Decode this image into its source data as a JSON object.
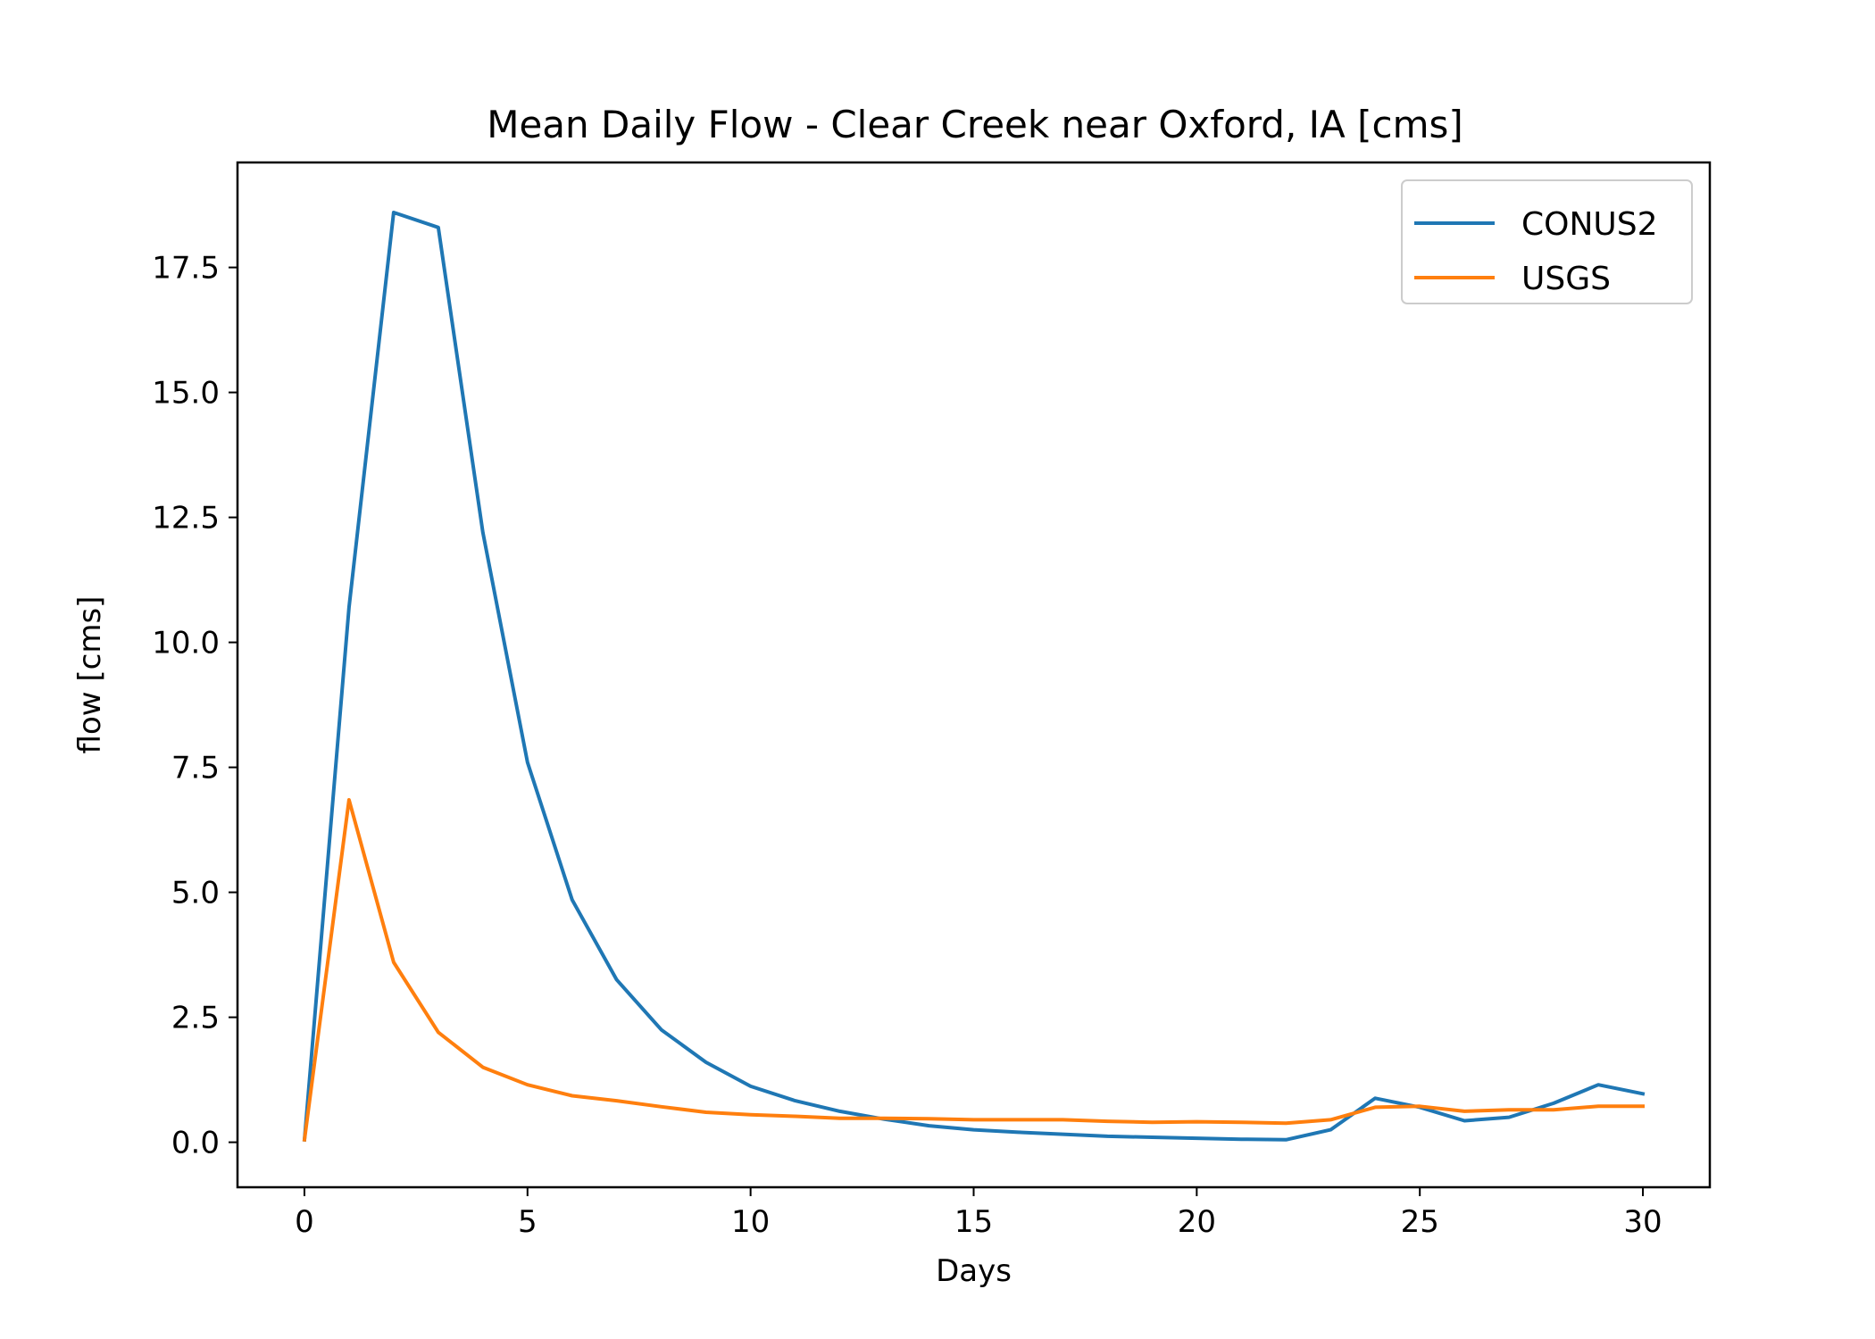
{
  "chart_data": {
    "type": "line",
    "title": "Mean Daily Flow - Clear Creek near Oxford, IA [cms]",
    "xlabel": "Days",
    "ylabel": "flow [cms]",
    "xlim": [
      -1.5,
      31.5
    ],
    "ylim": [
      -0.9,
      19.6
    ],
    "xticks": [
      0,
      5,
      10,
      15,
      20,
      25,
      30
    ],
    "xtick_labels": [
      "0",
      "5",
      "10",
      "15",
      "20",
      "25",
      "30"
    ],
    "yticks": [
      0,
      2.5,
      5,
      7.5,
      10,
      12.5,
      15,
      17.5
    ],
    "ytick_labels": [
      "0.0",
      "2.5",
      "5.0",
      "7.5",
      "10.0",
      "12.5",
      "15.0",
      "17.5"
    ],
    "grid": false,
    "legend_position": "top-right",
    "x": [
      0,
      1,
      2,
      3,
      4,
      5,
      6,
      7,
      8,
      9,
      10,
      11,
      12,
      13,
      14,
      15,
      16,
      17,
      18,
      19,
      20,
      21,
      22,
      23,
      24,
      25,
      26,
      27,
      28,
      29,
      30
    ],
    "series": [
      {
        "name": "CONUS2",
        "color": "#1f77b4",
        "values": [
          0.05,
          10.7,
          18.6,
          18.3,
          12.2,
          7.6,
          4.85,
          3.25,
          2.25,
          1.6,
          1.12,
          0.83,
          0.62,
          0.46,
          0.33,
          0.25,
          0.2,
          0.16,
          0.12,
          0.1,
          0.08,
          0.06,
          0.05,
          0.25,
          0.88,
          0.7,
          0.43,
          0.5,
          0.78,
          1.15,
          0.97
        ]
      },
      {
        "name": "USGS",
        "color": "#ff7f0e",
        "values": [
          0.05,
          6.85,
          3.6,
          2.2,
          1.5,
          1.15,
          0.93,
          0.83,
          0.71,
          0.6,
          0.55,
          0.52,
          0.48,
          0.48,
          0.47,
          0.45,
          0.45,
          0.45,
          0.42,
          0.4,
          0.41,
          0.4,
          0.38,
          0.45,
          0.7,
          0.72,
          0.62,
          0.65,
          0.65,
          0.72,
          0.72
        ]
      }
    ]
  }
}
